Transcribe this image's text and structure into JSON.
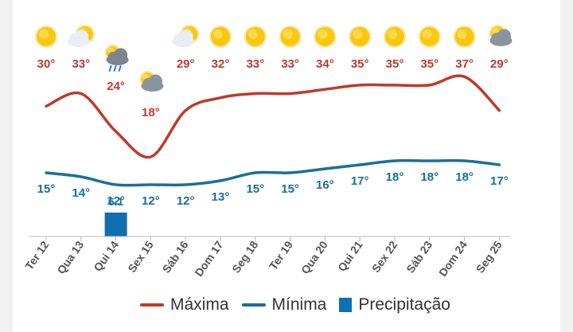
{
  "chart_data": {
    "type": "line",
    "categories": [
      "Ter 12",
      "Qua 13",
      "Qui 14",
      "Sex 15",
      "Sáb 16",
      "Dom 17",
      "Seg 18",
      "Ter 19",
      "Qua 20",
      "Qui 21",
      "Sex 22",
      "Sáb 23",
      "Dom 24",
      "Seg 25"
    ],
    "icons": [
      "sun-icon",
      "sun-cloud-icon",
      "cloud-rain-icon",
      "cloud-icon",
      "sun-cloud-icon",
      "sun-icon",
      "sun-icon",
      "sun-icon",
      "sun-icon",
      "sun-icon",
      "sun-icon",
      "sun-icon",
      "sun-icon",
      "cloud-sun-icon"
    ],
    "series": [
      {
        "name": "Máxima",
        "color": "#c0392b",
        "values": [
          30,
          33,
          24,
          18,
          29,
          32,
          33,
          33,
          34,
          35,
          35,
          35,
          37,
          29
        ],
        "labels": [
          "30°",
          "33°",
          "24°",
          "18°",
          "29°",
          "32°",
          "33°",
          "33°",
          "34°",
          "35°",
          "35°",
          "35°",
          "37°",
          "29°"
        ]
      },
      {
        "name": "Mínima",
        "color": "#1a6f9b",
        "values": [
          15,
          14,
          12,
          12,
          12,
          13,
          15,
          15,
          16,
          17,
          18,
          18,
          18,
          17
        ],
        "labels": [
          "15°",
          "14°",
          "12°",
          "12°",
          "12°",
          "13°",
          "15°",
          "15°",
          "16°",
          "17°",
          "18°",
          "18°",
          "18°",
          "17°"
        ]
      },
      {
        "name": "Precipitação",
        "type": "bar",
        "color": "#0f6fb0",
        "values": [
          0,
          0,
          6.1,
          0,
          0,
          0,
          0,
          0,
          0,
          0,
          0,
          0,
          0,
          0
        ],
        "labels": [
          "",
          "",
          "6.1",
          "",
          "",
          "",
          "",
          "",
          "",
          "",
          "",
          "",
          "",
          ""
        ]
      }
    ],
    "legend_position": "bottom",
    "grid": false
  },
  "legend": {
    "max_label": "Máxima",
    "min_label": "Mínima",
    "precip_label": "Precipitação",
    "max_color": "#c0392b",
    "min_color": "#1a6f9b",
    "precip_color": "#0f6fb0"
  }
}
